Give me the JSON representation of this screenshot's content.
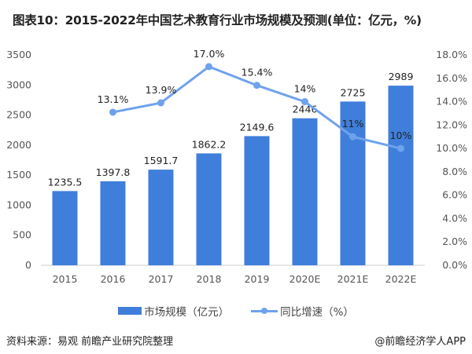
{
  "title": "图表10：2015-2022年中国艺术教育行业市场规模及预测(单位：亿元，%)",
  "colors": {
    "bar": "#3f7fdb",
    "line": "#6fa2ec"
  },
  "chart_data": {
    "type": "bar",
    "categories": [
      "2015",
      "2016",
      "2017",
      "2018",
      "2019",
      "2020E",
      "2021E",
      "2022E"
    ],
    "series": [
      {
        "name": "市场规模（亿元）",
        "type": "bar",
        "axis": "left",
        "values": [
          1235.5,
          1397.8,
          1591.7,
          1862.2,
          2149.6,
          2446,
          2725,
          2989
        ],
        "labels": [
          "1235.5",
          "1397.8",
          "1591.7",
          "1862.2",
          "2149.6",
          "2446",
          "2725",
          "2989"
        ]
      },
      {
        "name": "同比增速（%）",
        "type": "line",
        "axis": "right",
        "values": [
          null,
          13.1,
          13.9,
          17.0,
          15.4,
          14,
          11,
          10
        ],
        "labels": [
          "",
          "13.1%",
          "13.9%",
          "17.0%",
          "15.4%",
          "14%",
          "11%",
          "10%"
        ]
      }
    ],
    "y_left": {
      "range": [
        0,
        3500
      ],
      "ticks": [
        "0",
        "500",
        "1000",
        "1500",
        "2000",
        "2500",
        "3000",
        "3500"
      ]
    },
    "y_right": {
      "range": [
        0,
        18
      ],
      "ticks": [
        "0.0%",
        "2.0%",
        "4.0%",
        "6.0%",
        "8.0%",
        "10.0%",
        "12.0%",
        "14.0%",
        "16.0%",
        "18.0%"
      ]
    },
    "grid": false,
    "legend_position": "bottom"
  },
  "source": "资料来源：易观 前瞻产业研究院整理",
  "brand": "@前瞻经济学人APP"
}
